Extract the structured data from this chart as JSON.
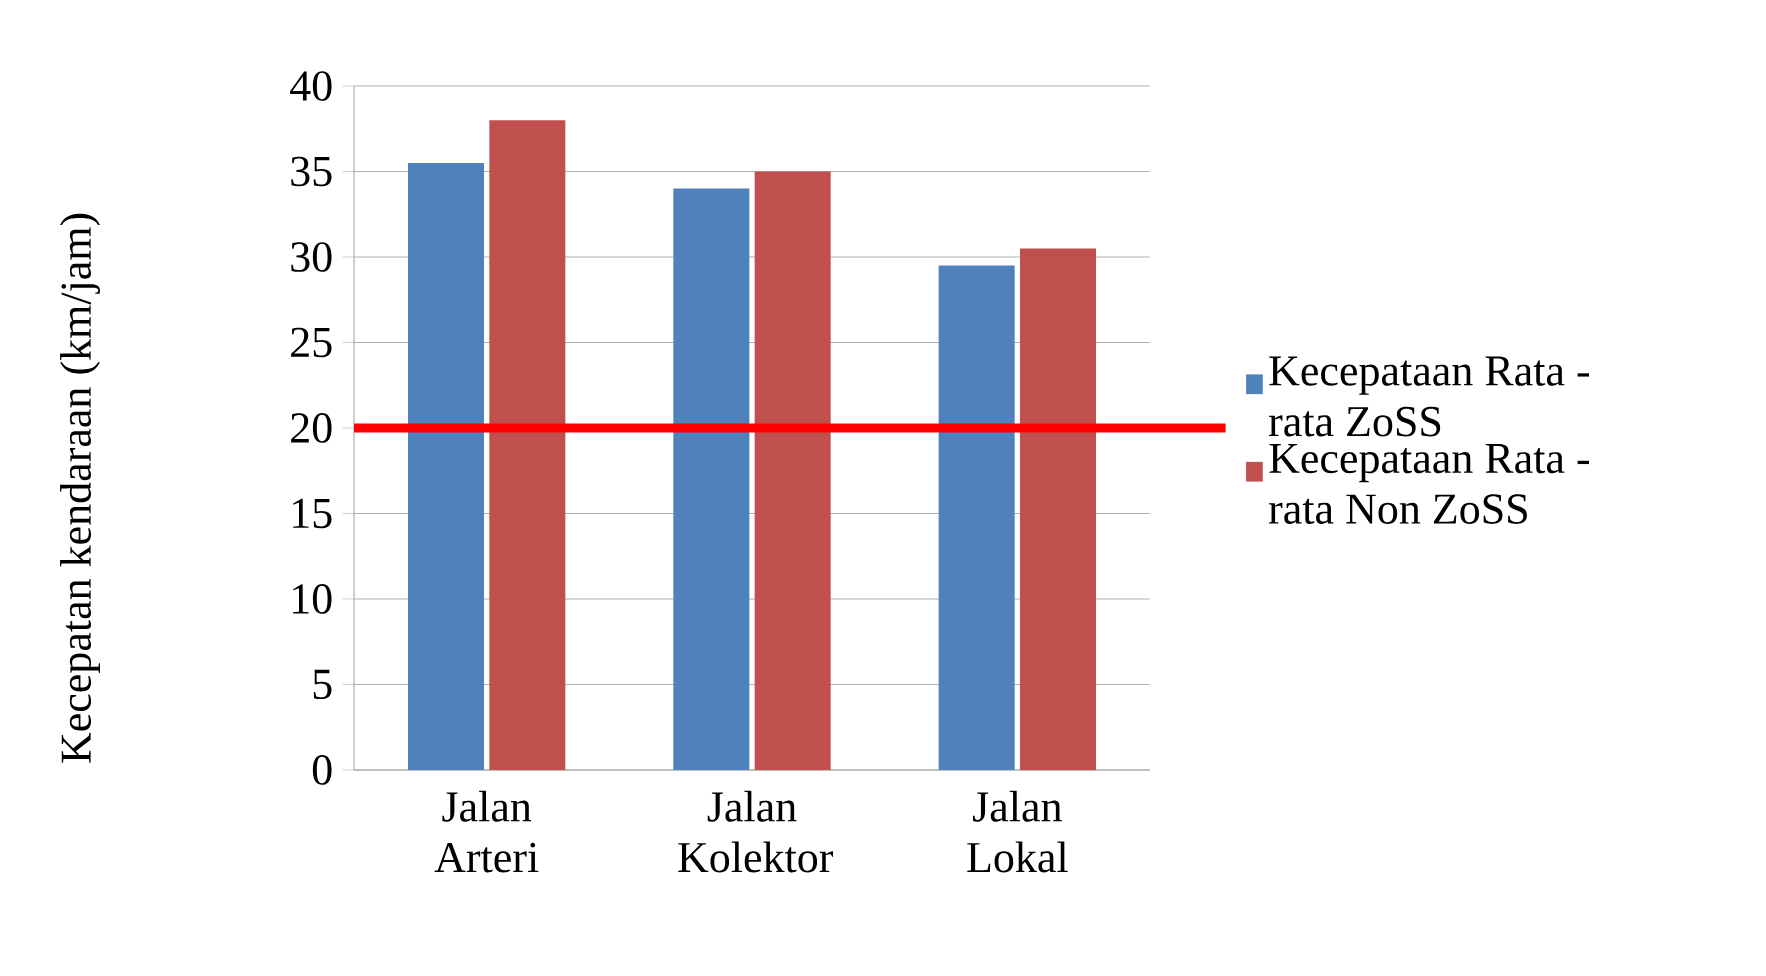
{
  "chart_data": {
    "type": "bar",
    "ylabel": "Kecepatan kendaraan (km/jam)",
    "categories": [
      "Jalan Arteri",
      "Jalan Kolektor",
      "Jalan Lokal"
    ],
    "series": [
      {
        "name": "Kecepataan Rata - rata ZoSS",
        "color": "#4f81bd",
        "values": [
          35.5,
          34,
          29.5
        ]
      },
      {
        "name": "Kecepataan Rata - rata Non ZoSS",
        "color": "#c0504d",
        "values": [
          38,
          35,
          30.5
        ]
      }
    ],
    "ylim": [
      0,
      40
    ],
    "yticks": [
      0,
      5,
      10,
      15,
      20,
      25,
      30,
      35,
      40
    ],
    "grid": "y",
    "legend": "right",
    "ref_lines": [
      {
        "axis": "y",
        "value": 20,
        "color": "#ff0000"
      }
    ]
  }
}
